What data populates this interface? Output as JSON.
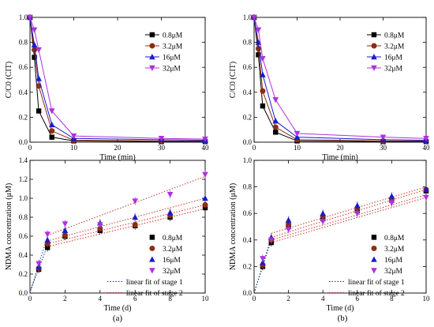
{
  "colors": {
    "0.8": "#000000",
    "3.2": "#8b2e12",
    "16": "#1a1acc",
    "32": "#b030e0",
    "fit1": "#1a3a7a",
    "fit2": "#cc3322"
  },
  "panel_labels": [
    "(a)",
    "(b)"
  ],
  "chart_data": [
    {
      "id": "a-top",
      "type": "line",
      "title": "",
      "xlabel": "Time (min)",
      "ylabel": "C/C0 (CIT)",
      "xlim": [
        0,
        40
      ],
      "ylim": [
        0,
        1.0
      ],
      "xticks": [
        0,
        10,
        20,
        30,
        40
      ],
      "yticks": [
        0,
        0.2,
        0.4,
        0.6,
        0.8,
        1.0
      ],
      "x": [
        0,
        1,
        2,
        5,
        10,
        30,
        40
      ],
      "legend": "top-right",
      "series": [
        {
          "name": "0.8μM",
          "key": "0.8",
          "marker": "square",
          "values": [
            1.0,
            0.68,
            0.25,
            0.04,
            0.01,
            0.005,
            0.005
          ]
        },
        {
          "name": "3.2μM",
          "key": "3.2",
          "marker": "circle",
          "values": [
            1.0,
            0.74,
            0.45,
            0.09,
            0.015,
            0.01,
            0.01
          ]
        },
        {
          "name": "16μM",
          "key": "16",
          "marker": "triangle-up",
          "values": [
            1.0,
            0.78,
            0.51,
            0.14,
            0.03,
            0.02,
            0.015
          ]
        },
        {
          "name": "32μM",
          "key": "32",
          "marker": "triangle-down",
          "values": [
            1.0,
            0.9,
            0.74,
            0.25,
            0.05,
            0.03,
            0.025
          ]
        }
      ]
    },
    {
      "id": "a-bottom",
      "type": "scatter",
      "title": "",
      "xlabel": "Time (d)",
      "ylabel": "NDMA  concentration (μM)",
      "xlim": [
        0,
        10
      ],
      "ylim": [
        0,
        1.4
      ],
      "xticks": [
        0,
        2,
        4,
        6,
        8,
        10
      ],
      "yticks": [
        0.0,
        0.2,
        0.4,
        0.6,
        0.8,
        1.0,
        1.2,
        1.4
      ],
      "x": [
        0.5,
        1,
        2,
        4,
        6,
        8,
        10
      ],
      "legend": "bottom-right",
      "series": [
        {
          "name": "0.8μM",
          "key": "0.8",
          "marker": "square",
          "values": [
            0.25,
            0.48,
            0.6,
            0.66,
            0.71,
            0.8,
            0.9
          ]
        },
        {
          "name": "3.2μM",
          "key": "3.2",
          "marker": "circle",
          "values": [
            0.26,
            0.52,
            0.61,
            0.68,
            0.72,
            0.82,
            0.93
          ]
        },
        {
          "name": "16μM",
          "key": "16",
          "marker": "triangle-up",
          "values": [
            0.28,
            0.56,
            0.66,
            0.74,
            0.8,
            0.85,
            1.0
          ]
        },
        {
          "name": "32μM",
          "key": "32",
          "marker": "triangle-down",
          "values": [
            0.31,
            0.62,
            0.73,
            0.72,
            0.97,
            1.04,
            1.25
          ]
        }
      ],
      "fits": [
        {
          "name": "linear fit of stage 1",
          "style": "fit1",
          "lines": [
            [
              0,
              0.02,
              1,
              0.5
            ],
            [
              0,
              0.0,
              1,
              0.6
            ]
          ]
        },
        {
          "name": "linear fit of stage 2",
          "style": "fit2",
          "lines": [
            [
              1,
              0.49,
              10,
              0.89
            ],
            [
              1,
              0.52,
              10,
              0.93
            ],
            [
              1,
              0.55,
              10,
              1.0
            ],
            [
              1,
              0.61,
              10,
              1.23
            ]
          ]
        }
      ]
    },
    {
      "id": "b-top",
      "type": "line",
      "title": "",
      "xlabel": "Time (min)",
      "ylabel": "C/C0 (CIT)",
      "xlim": [
        0,
        40
      ],
      "ylim": [
        0,
        1.0
      ],
      "xticks": [
        0,
        10,
        20,
        30,
        40
      ],
      "yticks": [
        0,
        0.2,
        0.4,
        0.6,
        0.8,
        1.0
      ],
      "x": [
        0,
        1,
        2,
        5,
        10,
        30,
        40
      ],
      "legend": "top-right",
      "series": [
        {
          "name": "0.8μM",
          "key": "0.8",
          "marker": "square",
          "values": [
            1.0,
            0.7,
            0.29,
            0.08,
            0.01,
            0.005,
            0.005
          ]
        },
        {
          "name": "3.2μM",
          "key": "3.2",
          "marker": "circle",
          "values": [
            1.0,
            0.75,
            0.41,
            0.12,
            0.02,
            0.01,
            0.01
          ]
        },
        {
          "name": "16μM",
          "key": "16",
          "marker": "triangle-up",
          "values": [
            1.0,
            0.8,
            0.54,
            0.17,
            0.04,
            0.02,
            0.015
          ]
        },
        {
          "name": "32μM",
          "key": "32",
          "marker": "triangle-down",
          "values": [
            1.0,
            0.9,
            0.67,
            0.34,
            0.07,
            0.04,
            0.03
          ]
        }
      ]
    },
    {
      "id": "b-bottom",
      "type": "scatter",
      "title": "",
      "xlabel": "Time (d)",
      "ylabel": "NDMA  concentration (μM)",
      "xlim": [
        0,
        10
      ],
      "ylim": [
        0,
        1.0
      ],
      "xticks": [
        0,
        2,
        4,
        6,
        8,
        10
      ],
      "yticks": [
        0.0,
        0.2,
        0.4,
        0.6,
        0.8,
        1.0
      ],
      "x": [
        0.5,
        1,
        2,
        4,
        6,
        8,
        10
      ],
      "legend": "bottom-right",
      "series": [
        {
          "name": "0.8μM",
          "key": "0.8",
          "marker": "square",
          "values": [
            0.2,
            0.38,
            0.5,
            0.56,
            0.62,
            0.7,
            0.77
          ]
        },
        {
          "name": "3.2μM",
          "key": "3.2",
          "marker": "circle",
          "values": [
            0.21,
            0.4,
            0.52,
            0.58,
            0.64,
            0.71,
            0.78
          ]
        },
        {
          "name": "16μM",
          "key": "16",
          "marker": "triangle-up",
          "values": [
            0.23,
            0.42,
            0.55,
            0.6,
            0.66,
            0.73,
            0.78
          ]
        },
        {
          "name": "32μM",
          "key": "32",
          "marker": "triangle-down",
          "values": [
            0.26,
            0.4,
            0.48,
            0.54,
            0.6,
            0.68,
            0.72
          ]
        }
      ],
      "fits": [
        {
          "name": "linear fit of stage 1",
          "style": "fit1",
          "lines": [
            [
              0,
              0.0,
              1,
              0.4
            ],
            [
              0,
              0.0,
              1,
              0.42
            ]
          ]
        },
        {
          "name": "linear fit of stage 2",
          "style": "fit2",
          "lines": [
            [
              1,
              0.4,
              10,
              0.74
            ],
            [
              1,
              0.42,
              10,
              0.78
            ],
            [
              1,
              0.45,
              10,
              0.8
            ],
            [
              1,
              0.38,
              10,
              0.72
            ]
          ]
        }
      ]
    }
  ]
}
